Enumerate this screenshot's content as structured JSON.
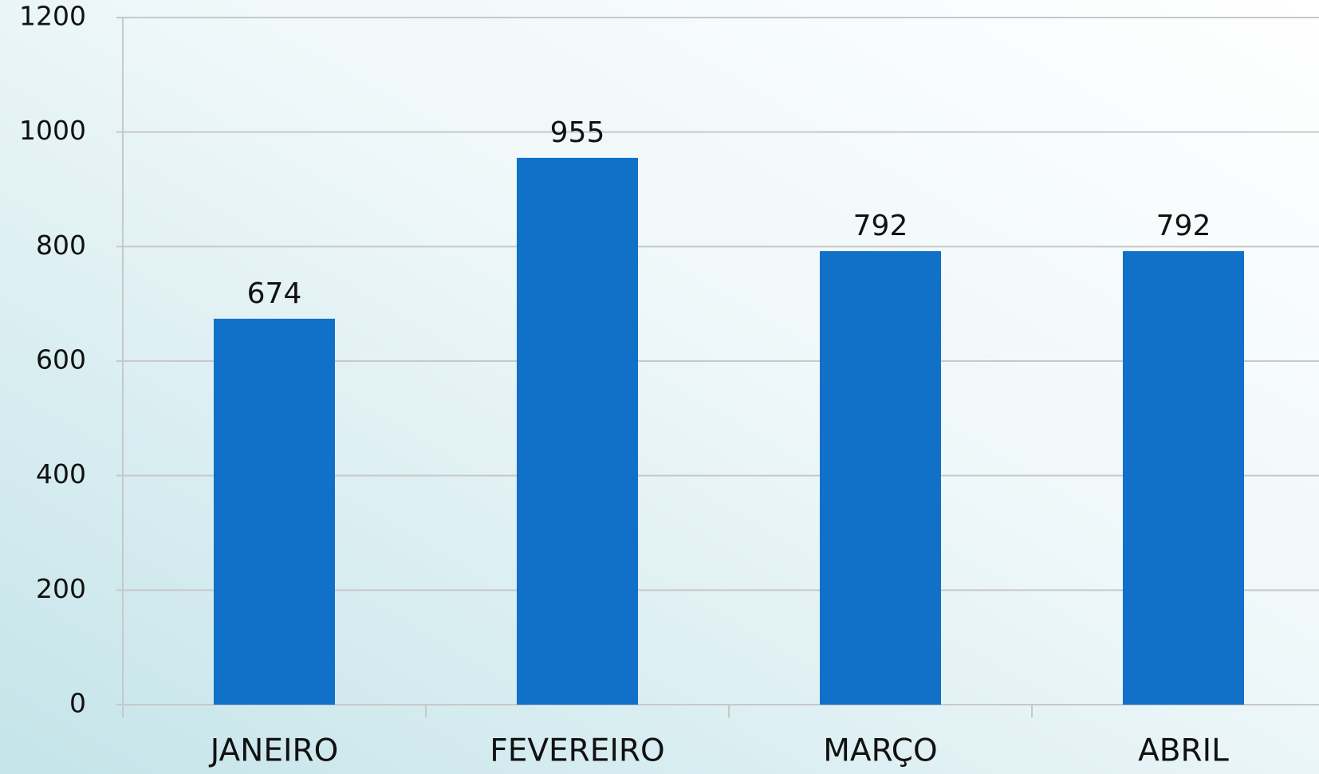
{
  "chart_data": {
    "type": "bar",
    "categories": [
      "JANEIRO",
      "FEVEREIRO",
      "MARÇO",
      "ABRIL"
    ],
    "values": [
      674,
      955,
      792,
      792
    ],
    "color": "#1170c8",
    "ylim": [
      0,
      1200
    ],
    "yticks": [
      0,
      200,
      400,
      600,
      800,
      1000,
      1200
    ],
    "grid": true
  }
}
